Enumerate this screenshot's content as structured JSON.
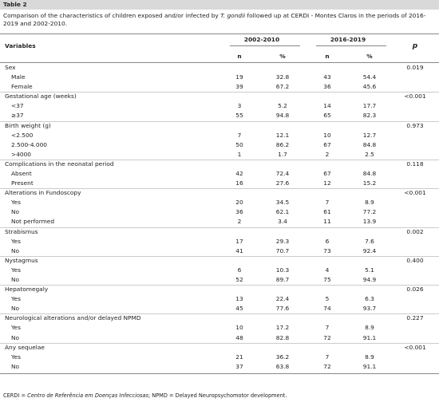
{
  "header": {
    "title": "Table 2",
    "caption": [
      "Comparison of the characteristics of children exposed and/or infected by ",
      "T. gondii",
      " followed up at CERDI - Montes Claros in the periods of 2016-2019 and 2002-2010."
    ]
  },
  "table": {
    "columns": {
      "variables": "Variables",
      "periods": [
        "2002-2010",
        "2016-2019"
      ],
      "p": "p",
      "sub": [
        "n",
        "%",
        "n",
        "%"
      ]
    },
    "groups": [
      {
        "label": "Sex",
        "p": "0.019",
        "rows": [
          {
            "label": "Male",
            "cells": [
              "19",
              "32.8",
              "43",
              "54.4"
            ]
          },
          {
            "label": "Female",
            "cells": [
              "39",
              "67.2",
              "36",
              "45.6"
            ]
          }
        ]
      },
      {
        "label": "Gestational age (weeks)",
        "p": "<0.001",
        "rows": [
          {
            "label": "<37",
            "cells": [
              "3",
              "5.2",
              "14",
              "17.7"
            ]
          },
          {
            "label": "≥37",
            "cells": [
              "55",
              "94.8",
              "65",
              "82.3"
            ]
          }
        ]
      },
      {
        "label": "Birth weight (g)",
        "p": "0.973",
        "rows": [
          {
            "label": "<2.500",
            "cells": [
              "7",
              "12.1",
              "10",
              "12.7"
            ]
          },
          {
            "label": "2.500-4.000",
            "cells": [
              "50",
              "86.2",
              "67",
              "84.8"
            ]
          },
          {
            "label": ">4000",
            "cells": [
              "1",
              "1.7",
              "2",
              "2.5"
            ]
          }
        ]
      },
      {
        "label": "Complications in the neonatal period",
        "p": "0.118",
        "rows": [
          {
            "label": "Absent",
            "cells": [
              "42",
              "72.4",
              "67",
              "84.8"
            ]
          },
          {
            "label": "Present",
            "cells": [
              "16",
              "27.6",
              "12",
              "15.2"
            ]
          }
        ]
      },
      {
        "label": "Alterations in Fundoscopy",
        "p": "<0.001",
        "rows": [
          {
            "label": "Yes",
            "cells": [
              "20",
              "34.5",
              "7",
              "8.9"
            ]
          },
          {
            "label": "No",
            "cells": [
              "36",
              "62.1",
              "61",
              "77.2"
            ]
          },
          {
            "label": "Not performed",
            "cells": [
              "2",
              "3.4",
              "11",
              "13.9"
            ]
          }
        ]
      },
      {
        "label": "Strabismus",
        "p": "0.002",
        "rows": [
          {
            "label": "Yes",
            "cells": [
              "17",
              "29.3",
              "6",
              "7.6"
            ]
          },
          {
            "label": "No",
            "cells": [
              "41",
              "70.7",
              "73",
              "92.4"
            ]
          }
        ]
      },
      {
        "label": "Nystagmus",
        "p": "0.400",
        "rows": [
          {
            "label": "Yes",
            "cells": [
              "6",
              "10.3",
              "4",
              "5.1"
            ]
          },
          {
            "label": "No",
            "cells": [
              "52",
              "89.7",
              "75",
              "94.9"
            ]
          }
        ]
      },
      {
        "label": "Hepatomegaly",
        "p": "0.026",
        "rows": [
          {
            "label": "Yes",
            "cells": [
              "13",
              "22.4",
              "5",
              "6.3"
            ]
          },
          {
            "label": "No",
            "cells": [
              "45",
              "77.6",
              "74",
              "93.7"
            ]
          }
        ]
      },
      {
        "label": "Neurological alterations and/or delayed NPMD",
        "p": "0.227",
        "rows": [
          {
            "label": "Yes",
            "cells": [
              "10",
              "17.2",
              "7",
              "8.9"
            ]
          },
          {
            "label": "No",
            "cells": [
              "48",
              "82.8",
              "72",
              "91.1"
            ]
          }
        ]
      },
      {
        "label": "Any sequelae",
        "p": "<0.001",
        "rows": [
          {
            "label": "Yes",
            "cells": [
              "21",
              "36.2",
              "7",
              "8.9"
            ]
          },
          {
            "label": "No",
            "cells": [
              "37",
              "63.8",
              "72",
              "91.1"
            ]
          }
        ]
      }
    ]
  },
  "footnote": [
    "CERDI = ",
    "Centro de Referência em Doenças Infecciosas",
    "; NPMD = Delayed Neuropsychomotor development."
  ]
}
